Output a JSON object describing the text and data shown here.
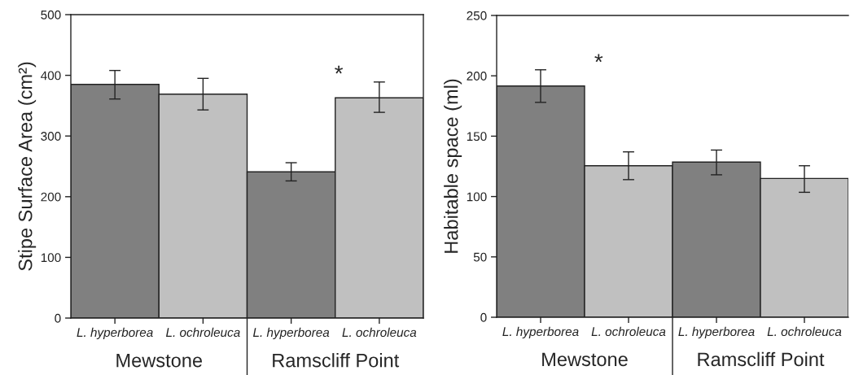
{
  "chart_data": [
    {
      "type": "bar",
      "categories": [
        "L. hyperborea",
        "L. ochroleuca",
        "L. hyperborea",
        "L. ochroleuca"
      ],
      "values": [
        385,
        369,
        241,
        363
      ],
      "errors": [
        [
          361,
          408
        ],
        [
          343,
          395
        ],
        [
          226,
          256
        ],
        [
          339,
          389
        ]
      ],
      "colors": [
        "#808080",
        "#c0c0c0",
        "#808080",
        "#c0c0c0"
      ],
      "ylabel": "Stipe Surface Area (cm²)",
      "ylim": [
        0,
        500
      ],
      "yticks": [
        0,
        100,
        200,
        300,
        400,
        500
      ],
      "grid": false,
      "legend": false,
      "annotations": [
        "*",
        "Mewstone",
        "Ramscliff Point"
      ]
    },
    {
      "type": "bar",
      "categories": [
        "L. hyperborea",
        "L. ochroleuca",
        "L. hyperborea",
        "L. ochroleuca"
      ],
      "values": [
        191.5,
        125.5,
        128.5,
        115
      ],
      "errors": [
        [
          178,
          205
        ],
        [
          114,
          137
        ],
        [
          118,
          138.5
        ],
        [
          103.5,
          125.5
        ]
      ],
      "colors": [
        "#808080",
        "#c0c0c0",
        "#808080",
        "#c0c0c0"
      ],
      "ylabel": "Habitable space (ml)",
      "ylim": [
        0,
        250
      ],
      "yticks": [
        0,
        50,
        100,
        150,
        200,
        250
      ],
      "grid": false,
      "legend": false,
      "annotations": [
        "*",
        "Mewstone",
        "Ramscliff Point"
      ]
    }
  ]
}
